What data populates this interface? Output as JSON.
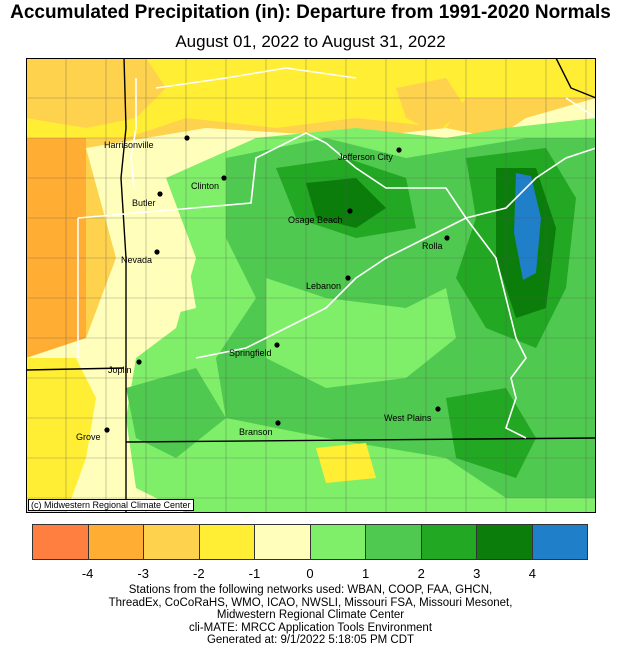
{
  "header": {
    "title": "Accumulated Precipitation (in): Departure from 1991-2020 Normals",
    "subtitle": "August 01, 2022 to August 31, 2022"
  },
  "map": {
    "copyright": "(c) Midwestern Regional Climate Center",
    "cities": [
      {
        "name": "Harrisonville"
      },
      {
        "name": "Jefferson City"
      },
      {
        "name": "Clinton"
      },
      {
        "name": "Butler"
      },
      {
        "name": "Osage Beach"
      },
      {
        "name": "Rolla"
      },
      {
        "name": "Nevada"
      },
      {
        "name": "Lebanon"
      },
      {
        "name": "Springfield"
      },
      {
        "name": "Joplin"
      },
      {
        "name": "West Plains"
      },
      {
        "name": "Grove"
      },
      {
        "name": "Branson"
      }
    ]
  },
  "legend": {
    "colors": [
      "#ff7f40",
      "#ffad33",
      "#ffd24d",
      "#ffee33",
      "#ffffbb",
      "#7fef6a",
      "#4fc94f",
      "#22a822",
      "#0b7d0b",
      "#1f7fc8"
    ],
    "ticks": [
      "-4",
      "-3",
      "-2",
      "-1",
      "0",
      "1",
      "2",
      "3",
      "4"
    ]
  },
  "footer": {
    "lines": [
      "Stations from the following networks used: WBAN, COOP, FAA, GHCN,",
      "ThreadEx, CoCoRaHS, WMO, ICAO, NWSLI, Missouri FSA, Missouri Mesonet,",
      "Midwestern Regional Climate Center",
      "cli-MATE: MRCC Application Tools Environment",
      "Generated at: 9/1/2022 5:18:05 PM CDT"
    ]
  }
}
